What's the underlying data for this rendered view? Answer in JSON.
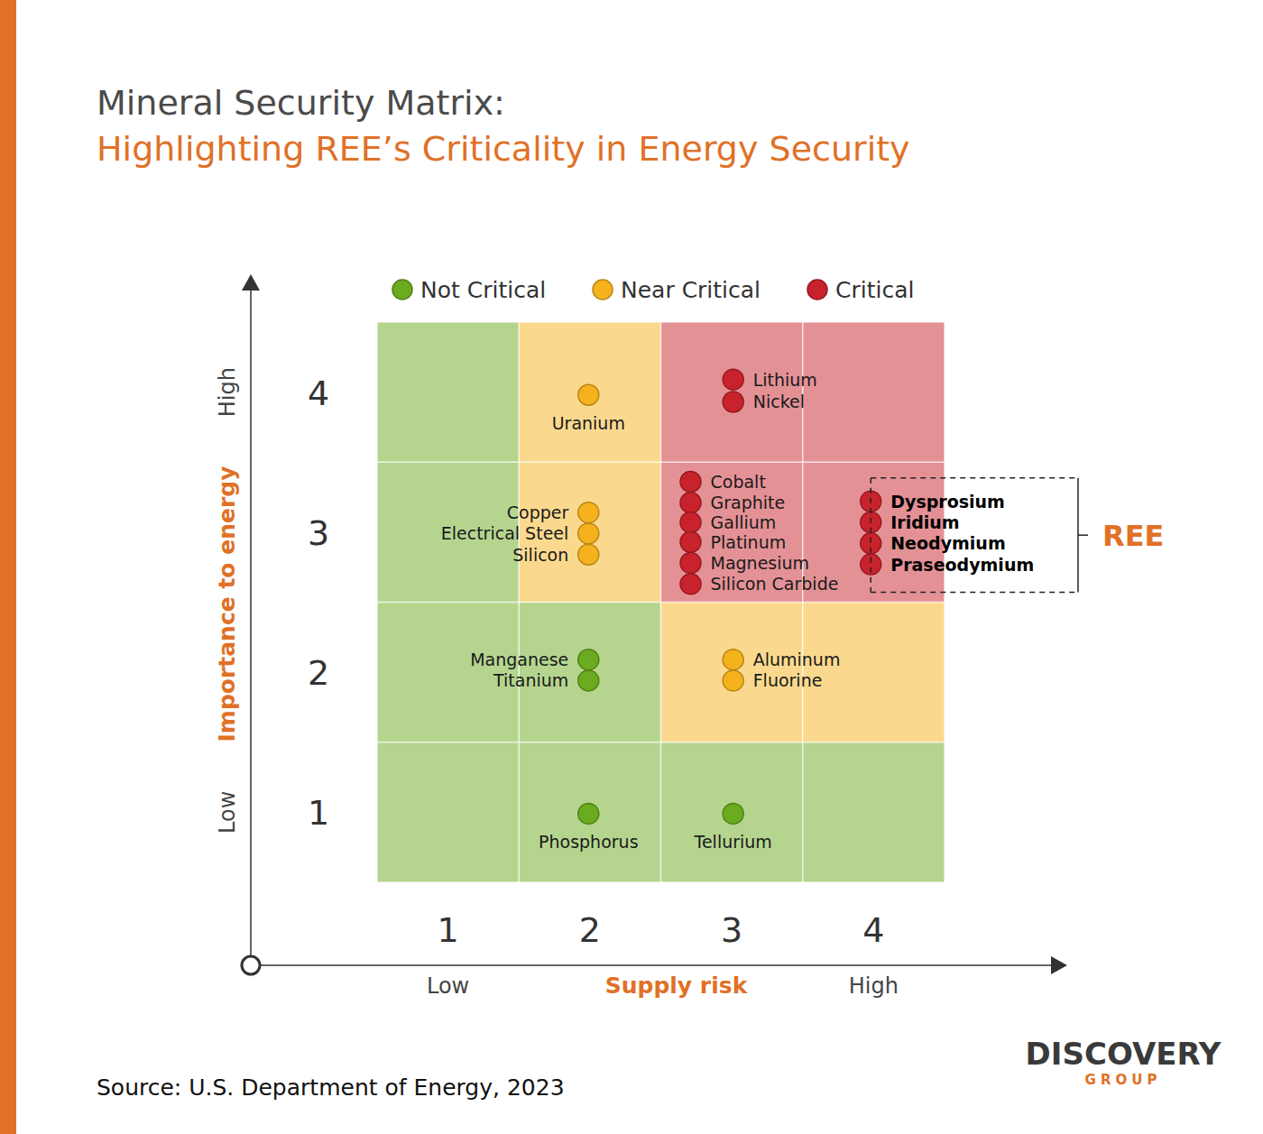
{
  "chart_data": {
    "type": "scatter",
    "title": "Mineral Security Matrix:",
    "subtitle": "Highlighting REE’s Criticality in Energy Security",
    "x_label": "Supply risk",
    "y_label": "Importance to energy",
    "xlim": [
      0.5,
      4.5
    ],
    "ylim": [
      0.5,
      4.5
    ],
    "xticks": [
      1,
      2,
      3,
      4
    ],
    "yticks": [
      1,
      2,
      3,
      4
    ],
    "x_scale_labels": [
      "Low",
      "High"
    ],
    "y_scale_labels": [
      "Low",
      "High"
    ],
    "legend": "top",
    "grid": true,
    "cells": [
      [
        0,
        0,
        0,
        0
      ],
      [
        0,
        0,
        1,
        1
      ],
      [
        0,
        1,
        2,
        2
      ],
      [
        0,
        1,
        2,
        2
      ]
    ],
    "series": [
      {
        "name": "Not Critical",
        "color": "#6aab1f",
        "labels": [
          "Manganese",
          "Titanium",
          "Phosphorus",
          "Tellurium"
        ],
        "x": [
          1.99,
          1.99,
          1.99,
          3.01
        ],
        "values": [
          2.09,
          1.94,
          0.99,
          0.99
        ]
      },
      {
        "name": "Near Critical",
        "color": "#f5b21c",
        "labels": [
          "Uranium",
          "Copper",
          "Electrical Steel",
          "Silicon",
          "Aluminum",
          "Fluorine"
        ],
        "x": [
          1.99,
          1.99,
          1.99,
          1.99,
          3.01,
          3.01
        ],
        "values": [
          3.98,
          3.14,
          2.99,
          2.84,
          2.09,
          1.94
        ]
      },
      {
        "name": "Critical",
        "color": "#c8232c",
        "labels": [
          "Lithium",
          "Nickel",
          "Cobalt",
          "Graphite",
          "Gallium",
          "Platinum",
          "Magnesium",
          "Silicon Carbide",
          "Dysprosium",
          "Iridium",
          "Neodymium",
          "Praseodymium"
        ],
        "x": [
          3.01,
          3.01,
          2.71,
          2.71,
          2.71,
          2.71,
          2.71,
          2.71,
          3.98,
          3.98,
          3.98,
          3.98
        ],
        "values": [
          4.09,
          3.93,
          3.36,
          3.21,
          3.07,
          2.93,
          2.78,
          2.63,
          3.22,
          3.07,
          2.92,
          2.77
        ]
      }
    ],
    "annotations": [
      {
        "text": "REE",
        "series": 2,
        "points": [
          8,
          9,
          10,
          11
        ]
      }
    ],
    "source": "Source: U.S. Department of Energy, 2023",
    "brand": "DISCOVERY",
    "brand_sub": "GROUP"
  }
}
